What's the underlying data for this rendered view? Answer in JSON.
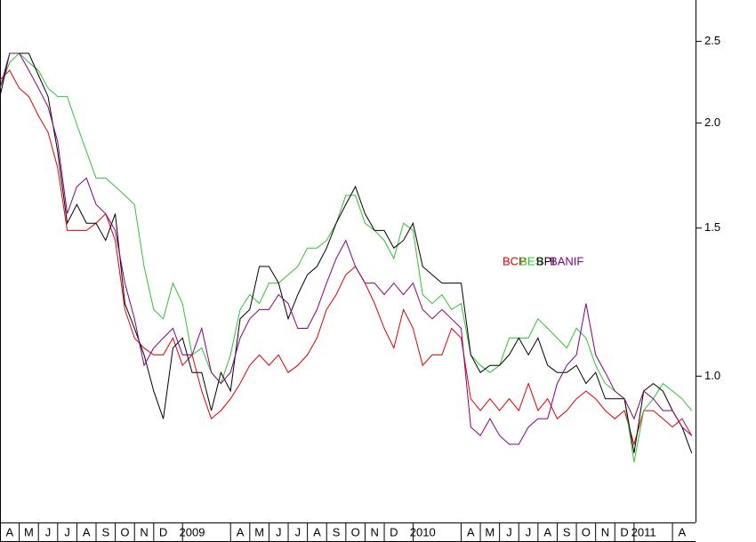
{
  "chart_data": {
    "type": "line",
    "x": [
      0,
      0.5,
      1,
      1.5,
      2,
      2.5,
      3,
      3.5,
      4,
      4.5,
      5,
      5.5,
      6,
      6.5,
      7,
      7.5,
      8,
      8.5,
      9,
      9.5,
      10,
      10.5,
      11,
      11.5,
      12,
      12.5,
      13,
      13.5,
      14,
      14.5,
      15,
      15.5,
      16,
      16.5,
      17,
      17.5,
      18,
      18.5,
      19,
      19.5,
      20,
      20.5,
      21,
      21.5,
      22,
      22.5,
      23,
      23.5,
      24,
      24.5,
      25,
      25.5,
      26,
      26.5,
      27,
      27.5,
      28,
      28.5,
      29,
      29.5,
      30,
      30.5,
      31,
      31.5,
      32,
      32.5,
      33,
      33.5,
      34,
      34.5,
      35,
      35.5,
      36
    ],
    "series": [
      {
        "name": "BCP",
        "color": "#e00000",
        "values": [
          2.25,
          2.31,
          2.2,
          2.15,
          2.04,
          1.95,
          1.77,
          1.49,
          1.49,
          1.49,
          1.52,
          1.56,
          1.45,
          1.2,
          1.11,
          1.08,
          1.06,
          1.06,
          1.11,
          1.03,
          1.06,
          0.96,
          0.89,
          0.91,
          0.94,
          0.98,
          1.03,
          1.06,
          1.03,
          1.06,
          1.01,
          1.03,
          1.06,
          1.11,
          1.2,
          1.25,
          1.32,
          1.35,
          1.29,
          1.22,
          1.14,
          1.08,
          1.2,
          1.14,
          1.03,
          1.06,
          1.06,
          1.14,
          1.11,
          0.94,
          0.91,
          0.94,
          0.91,
          0.94,
          0.91,
          0.98,
          0.91,
          0.94,
          0.89,
          0.91,
          0.94,
          0.96,
          0.94,
          0.91,
          0.89,
          0.91,
          0.83,
          0.91,
          0.91,
          0.89,
          0.87,
          0.89,
          0.85
        ]
      },
      {
        "name": "BES",
        "color": "#33c033",
        "values": [
          2.2,
          2.36,
          2.42,
          2.36,
          2.31,
          2.2,
          2.15,
          2.15,
          1.99,
          1.85,
          1.72,
          1.72,
          1.68,
          1.64,
          1.6,
          1.35,
          1.2,
          1.17,
          1.29,
          1.22,
          1.06,
          1.08,
          1.01,
          0.98,
          1.06,
          1.2,
          1.25,
          1.22,
          1.29,
          1.29,
          1.32,
          1.35,
          1.42,
          1.42,
          1.45,
          1.52,
          1.64,
          1.64,
          1.52,
          1.49,
          1.45,
          1.38,
          1.52,
          1.49,
          1.25,
          1.22,
          1.25,
          1.2,
          1.22,
          1.06,
          1.03,
          1.01,
          1.03,
          1.11,
          1.11,
          1.11,
          1.17,
          1.14,
          1.11,
          1.08,
          1.14,
          1.11,
          1.03,
          0.98,
          0.96,
          0.94,
          0.79,
          0.91,
          0.94,
          0.98,
          0.96,
          0.94,
          0.91
        ]
      },
      {
        "name": "BPI",
        "color": "#000000",
        "values": [
          2.15,
          2.42,
          2.42,
          2.42,
          2.28,
          2.15,
          1.85,
          1.52,
          1.6,
          1.52,
          1.52,
          1.45,
          1.56,
          1.22,
          1.14,
          1.06,
          0.96,
          0.89,
          1.08,
          1.11,
          1.01,
          1.01,
          0.91,
          1.01,
          0.96,
          1.17,
          1.2,
          1.35,
          1.35,
          1.29,
          1.17,
          1.25,
          1.32,
          1.35,
          1.42,
          1.52,
          1.6,
          1.68,
          1.56,
          1.49,
          1.49,
          1.42,
          1.45,
          1.52,
          1.35,
          1.32,
          1.29,
          1.29,
          1.29,
          1.06,
          1.01,
          1.03,
          1.03,
          1.06,
          1.11,
          1.06,
          1.11,
          1.03,
          1.01,
          1.01,
          1.03,
          0.98,
          1.01,
          0.94,
          0.94,
          0.94,
          0.81,
          0.96,
          0.98,
          0.96,
          0.91,
          0.87,
          0.81
        ]
      },
      {
        "name": "BANIF",
        "color": "#800080",
        "values": [
          2.2,
          2.42,
          2.42,
          2.31,
          2.2,
          2.09,
          1.9,
          1.56,
          1.68,
          1.72,
          1.6,
          1.56,
          1.49,
          1.29,
          1.17,
          1.03,
          1.08,
          1.11,
          1.14,
          1.06,
          1.06,
          1.14,
          1.01,
          0.98,
          1.01,
          1.11,
          1.17,
          1.2,
          1.2,
          1.25,
          1.22,
          1.14,
          1.14,
          1.2,
          1.29,
          1.38,
          1.45,
          1.35,
          1.29,
          1.29,
          1.25,
          1.29,
          1.25,
          1.29,
          1.2,
          1.17,
          1.2,
          1.17,
          1.14,
          0.87,
          0.85,
          0.89,
          0.85,
          0.83,
          0.83,
          0.87,
          0.89,
          0.89,
          0.98,
          1.03,
          1.06,
          1.22,
          1.06,
          1.01,
          0.96,
          0.94,
          0.89,
          0.96,
          0.94,
          0.91,
          0.91,
          0.87,
          0.85
        ]
      }
    ],
    "xlim": [
      0,
      36.2
    ],
    "xticks": [
      {
        "value": 0.5,
        "label": "A"
      },
      {
        "value": 1.5,
        "label": "M"
      },
      {
        "value": 2.5,
        "label": "J"
      },
      {
        "value": 3.5,
        "label": "J"
      },
      {
        "value": 4.5,
        "label": "A"
      },
      {
        "value": 5.5,
        "label": "S"
      },
      {
        "value": 6.5,
        "label": "O"
      },
      {
        "value": 7.5,
        "label": "N"
      },
      {
        "value": 8.5,
        "label": "D"
      },
      {
        "value": 10,
        "label": "2009"
      },
      {
        "value": 12.5,
        "label": "A"
      },
      {
        "value": 13.5,
        "label": "M"
      },
      {
        "value": 14.5,
        "label": "J"
      },
      {
        "value": 15.5,
        "label": "J"
      },
      {
        "value": 16.5,
        "label": "A"
      },
      {
        "value": 17.5,
        "label": "S"
      },
      {
        "value": 18.5,
        "label": "O"
      },
      {
        "value": 19.5,
        "label": "N"
      },
      {
        "value": 20.5,
        "label": "D"
      },
      {
        "value": 22,
        "label": "2010"
      },
      {
        "value": 24.5,
        "label": "A"
      },
      {
        "value": 25.5,
        "label": "M"
      },
      {
        "value": 26.5,
        "label": "J"
      },
      {
        "value": 27.5,
        "label": "J"
      },
      {
        "value": 28.5,
        "label": "A"
      },
      {
        "value": 29.5,
        "label": "S"
      },
      {
        "value": 30.5,
        "label": "O"
      },
      {
        "value": 31.5,
        "label": "N"
      },
      {
        "value": 32.5,
        "label": "D"
      },
      {
        "value": 33.5,
        "label": "2011"
      },
      {
        "value": 35.5,
        "label": "A"
      }
    ],
    "ylim": [
      0.67,
      2.8
    ],
    "yticks": [
      {
        "value": 1,
        "label": "1.0"
      },
      1.5,
      {
        "value": 2,
        "label": "2.0"
      },
      2.5
    ],
    "log_scale_y": true,
    "legend": "center-right"
  }
}
